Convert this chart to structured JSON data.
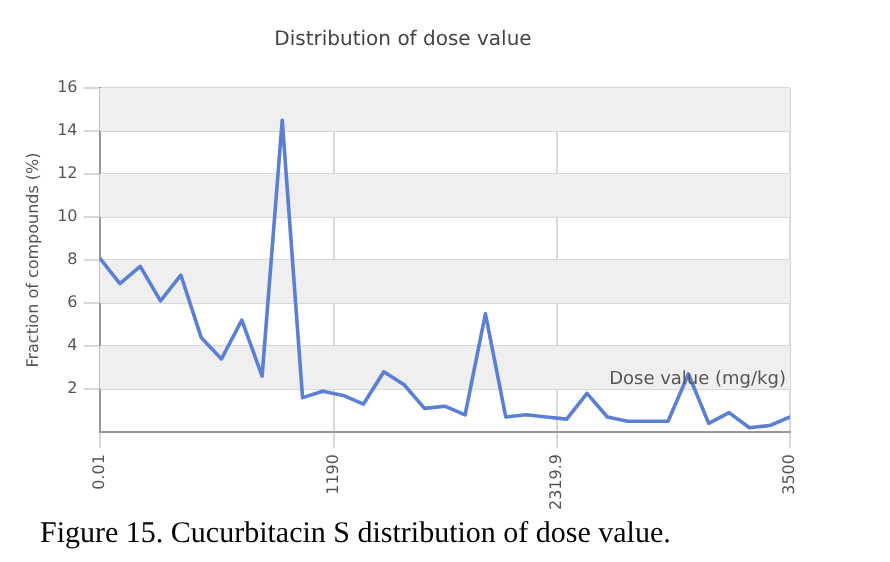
{
  "chart_data": {
    "type": "line",
    "title": "Distribution of dose value",
    "xlabel": "Dose value (mg/kg)",
    "ylabel": "Fraction of compounds (%)",
    "annotations": [
      "Figure 15. Cucurbitacin S distribution of dose value."
    ],
    "x": [
      0.01,
      103,
      206,
      309,
      412,
      515,
      618,
      721,
      824,
      926,
      1029,
      1132,
      1235,
      1338,
      1441,
      1544,
      1647,
      1750,
      1853,
      1956,
      2059,
      2162,
      2265,
      2368,
      2471,
      2574,
      2677,
      2780,
      2882,
      2985,
      3088,
      3191,
      3294,
      3397,
      3500
    ],
    "series": [
      {
        "color": "#5b7fd1",
        "values": [
          8.1,
          6.9,
          7.7,
          6.1,
          7.3,
          4.4,
          3.4,
          5.2,
          2.6,
          14.5,
          1.6,
          1.9,
          1.7,
          1.3,
          2.8,
          2.2,
          1.1,
          1.2,
          0.8,
          5.5,
          0.7,
          0.8,
          0.7,
          0.6,
          1.8,
          0.7,
          0.5,
          0.5,
          0.5,
          2.7,
          0.4,
          0.9,
          0.2,
          0.3,
          0.7
        ]
      }
    ],
    "xlim": [
      0.01,
      3500
    ],
    "xticks": [
      0.01,
      1190,
      {
        "value": 2319.9,
        "label": "2319.9"
      },
      3500
    ],
    "ylim": [
      0,
      16
    ],
    "yticks": [
      {
        "value": 0,
        "label": null
      },
      2,
      4,
      6,
      8,
      10,
      12,
      14,
      16
    ],
    "grid": true,
    "legend": false,
    "marker": "none",
    "line_style": "solid"
  }
}
